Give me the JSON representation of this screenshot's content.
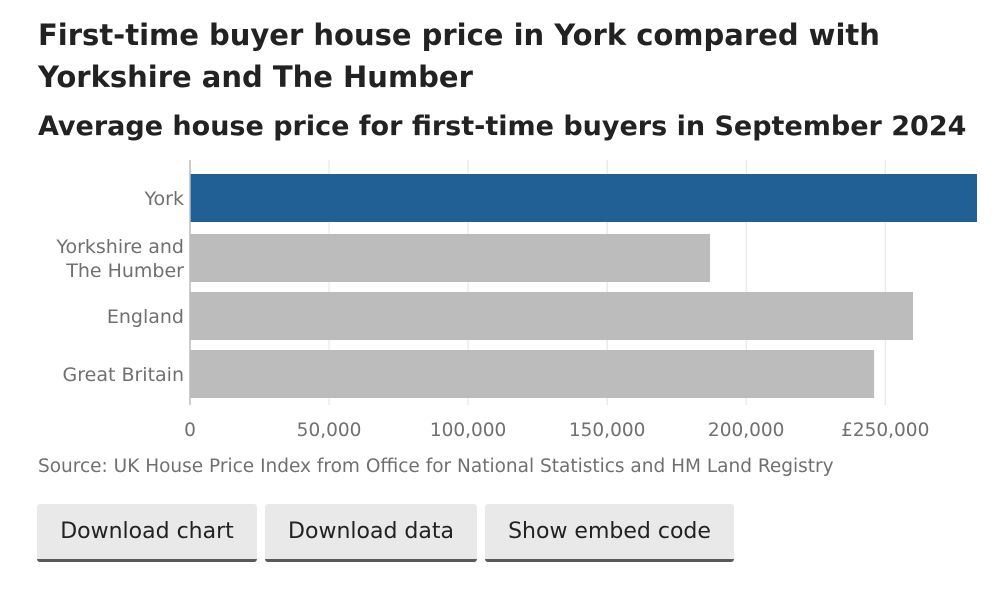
{
  "chart_data": {
    "type": "bar",
    "orientation": "horizontal",
    "title": "First-time buyer house price in York compared with Yorkshire and The Humber",
    "subtitle": "Average house price for first-time buyers in September 2024",
    "categories": [
      [
        "York"
      ],
      [
        "Yorkshire and",
        "The Humber"
      ],
      [
        "England"
      ],
      [
        "Great Britain"
      ]
    ],
    "values": [
      283000,
      187000,
      260000,
      246000
    ],
    "highlight_index": 0,
    "highlight_color": "#206095",
    "bar_color": "#bcbcbc",
    "gridline_color": "#e2e2e2",
    "xlim": [
      0,
      283000
    ],
    "ticks": [
      0,
      50000,
      100000,
      150000,
      200000,
      250000
    ],
    "tick_labels": [
      "0",
      "50,000",
      "100,000",
      "150,000",
      "200,000",
      "£250,000"
    ],
    "grid": true,
    "xlabel": "",
    "ylabel": ""
  },
  "source": "Source: UK House Price Index from Office for National Statistics and HM Land Registry",
  "buttons": {
    "download_chart": "Download chart",
    "download_data": "Download data",
    "show_embed": "Show embed code"
  }
}
